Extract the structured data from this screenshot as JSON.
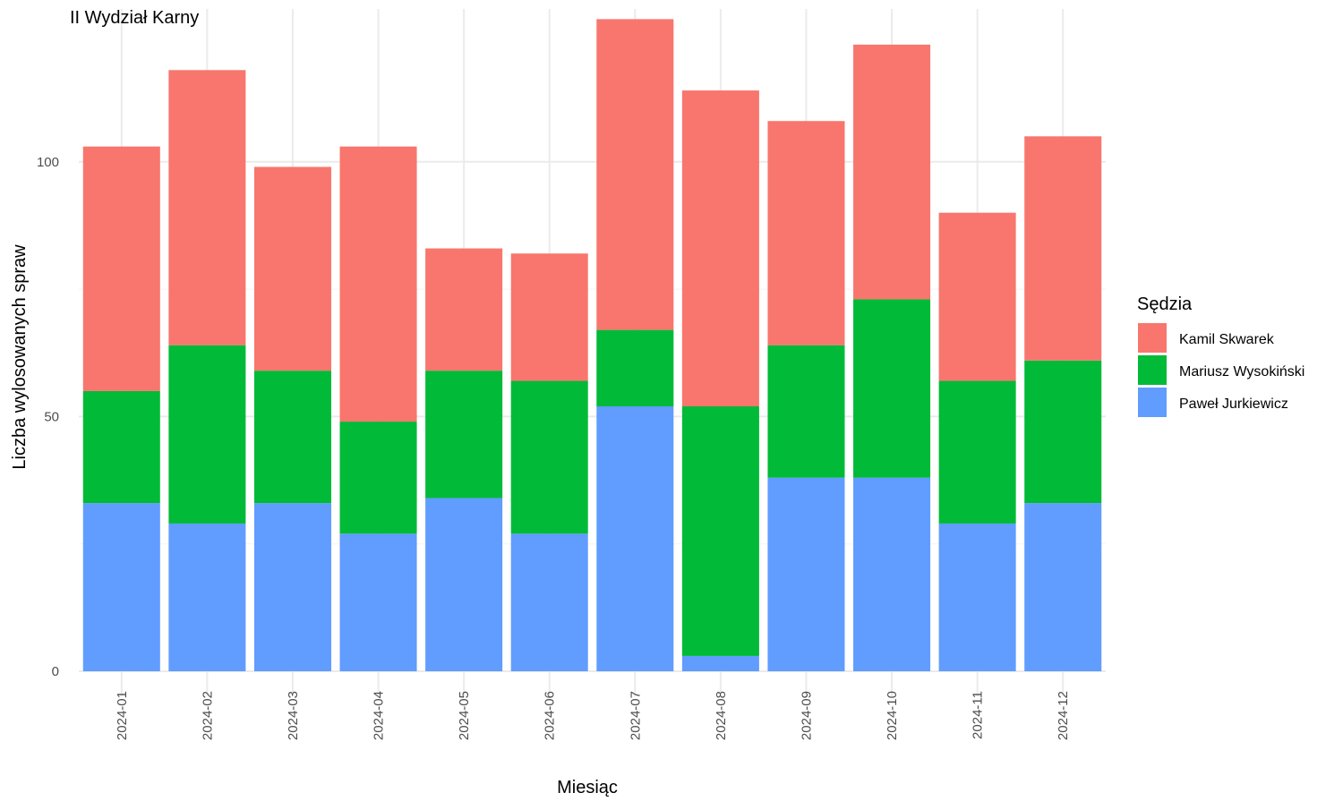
{
  "chart_data": {
    "type": "bar",
    "stacked": true,
    "title": "II Wydział Karny",
    "xlabel": "Miesiąc",
    "ylabel": "Liczba wylosowanych spraw",
    "ylim": [
      0,
      130
    ],
    "yticks": [
      0,
      50,
      100
    ],
    "grid": true,
    "legend": {
      "title": "Sędzia",
      "position": "right"
    },
    "categories": [
      "2024-01",
      "2024-02",
      "2024-03",
      "2024-04",
      "2024-05",
      "2024-06",
      "2024-07",
      "2024-08",
      "2024-09",
      "2024-10",
      "2024-11",
      "2024-12"
    ],
    "series": [
      {
        "name": "Paweł Jurkiewicz",
        "color": "#619CFF",
        "values": [
          33,
          29,
          33,
          27,
          34,
          27,
          52,
          3,
          38,
          38,
          29,
          33
        ]
      },
      {
        "name": "Mariusz Wysokiński",
        "color": "#00BA38",
        "values": [
          22,
          35,
          26,
          22,
          25,
          30,
          15,
          49,
          26,
          35,
          28,
          28
        ]
      },
      {
        "name": "Kamil Skwarek",
        "color": "#F8766D",
        "values": [
          48,
          54,
          40,
          54,
          24,
          25,
          61,
          62,
          44,
          50,
          33,
          44
        ]
      }
    ],
    "legend_order": [
      "Kamil Skwarek",
      "Mariusz Wysokiński",
      "Paweł Jurkiewicz"
    ]
  }
}
